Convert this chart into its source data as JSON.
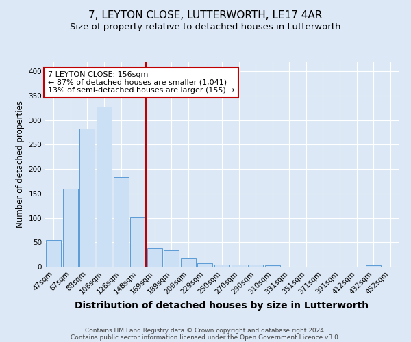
{
  "title1": "7, LEYTON CLOSE, LUTTERWORTH, LE17 4AR",
  "title2": "Size of property relative to detached houses in Lutterworth",
  "xlabel": "Distribution of detached houses by size in Lutterworth",
  "ylabel": "Number of detached properties",
  "categories": [
    "47sqm",
    "67sqm",
    "88sqm",
    "108sqm",
    "128sqm",
    "148sqm",
    "169sqm",
    "189sqm",
    "209sqm",
    "229sqm",
    "250sqm",
    "270sqm",
    "290sqm",
    "310sqm",
    "331sqm",
    "351sqm",
    "371sqm",
    "391sqm",
    "412sqm",
    "432sqm",
    "452sqm"
  ],
  "values": [
    55,
    160,
    283,
    328,
    183,
    102,
    38,
    33,
    18,
    7,
    4,
    4,
    4,
    3,
    0,
    0,
    0,
    0,
    0,
    3,
    0
  ],
  "bar_color": "#cce0f5",
  "bar_edge_color": "#5b9bd5",
  "vline_x_index": 6,
  "vline_color": "#c00000",
  "annotation_line1": "7 LEYTON CLOSE: 156sqm",
  "annotation_line2": "← 87% of detached houses are smaller (1,041)",
  "annotation_line3": "13% of semi-detached houses are larger (155) →",
  "annotation_box_color": "white",
  "annotation_box_edge_color": "#c00000",
  "ylim": [
    0,
    420
  ],
  "yticks": [
    0,
    50,
    100,
    150,
    200,
    250,
    300,
    350,
    400
  ],
  "background_color": "#dce8f5",
  "plot_bg_color": "#dce8f5",
  "footer_line1": "Contains HM Land Registry data © Crown copyright and database right 2024.",
  "footer_line2": "Contains public sector information licensed under the Open Government Licence v3.0.",
  "title1_fontsize": 11,
  "title2_fontsize": 9.5,
  "xlabel_fontsize": 10,
  "ylabel_fontsize": 8.5,
  "tick_fontsize": 7.5,
  "footer_fontsize": 6.5,
  "annotation_fontsize": 8
}
